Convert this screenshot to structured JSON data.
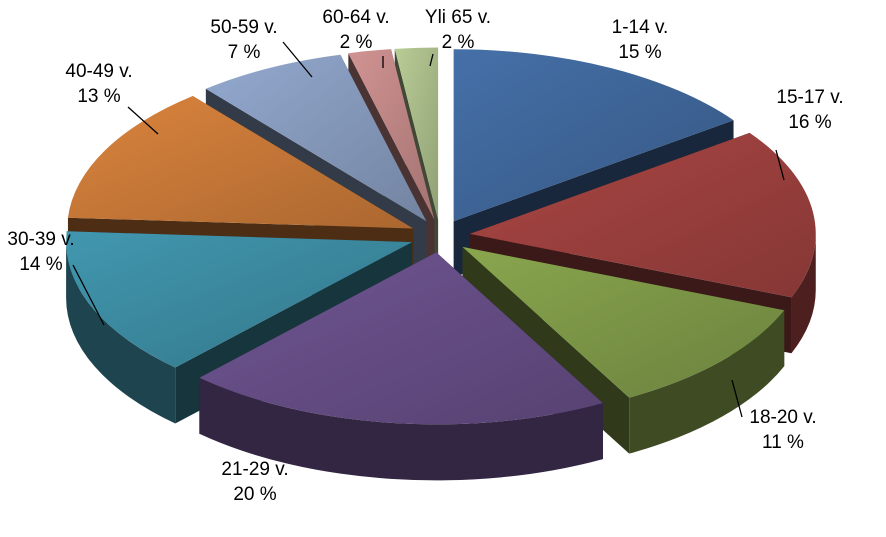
{
  "chart_data": {
    "type": "pie",
    "style": "3d-exploded",
    "legend": "none",
    "slices": [
      {
        "label": "1-14 v.",
        "value": 15,
        "value_label": "15 %",
        "color": "#4570A8"
      },
      {
        "label": "15-17 v.",
        "value": 16,
        "value_label": "16 %",
        "color": "#AA4644"
      },
      {
        "label": "18-20 v.",
        "value": 11,
        "value_label": "11 %",
        "color": "#89A64E"
      },
      {
        "label": "21-29 v.",
        "value": 20,
        "value_label": "20 %",
        "color": "#6F5592"
      },
      {
        "label": "30-39 v.",
        "value": 14,
        "value_label": "14 %",
        "color": "#4197AF"
      },
      {
        "label": "40-49 v.",
        "value": 13,
        "value_label": "13 %",
        "color": "#DB843D"
      },
      {
        "label": "50-59 v.",
        "value": 7,
        "value_label": "7 %",
        "color": "#93A9CF"
      },
      {
        "label": "60-64 v.",
        "value": 2,
        "value_label": "2 %",
        "color": "#D19392"
      },
      {
        "label": "Yli 65 v.",
        "value": 2,
        "value_label": "2 %",
        "color": "#B9CD96"
      }
    ]
  }
}
